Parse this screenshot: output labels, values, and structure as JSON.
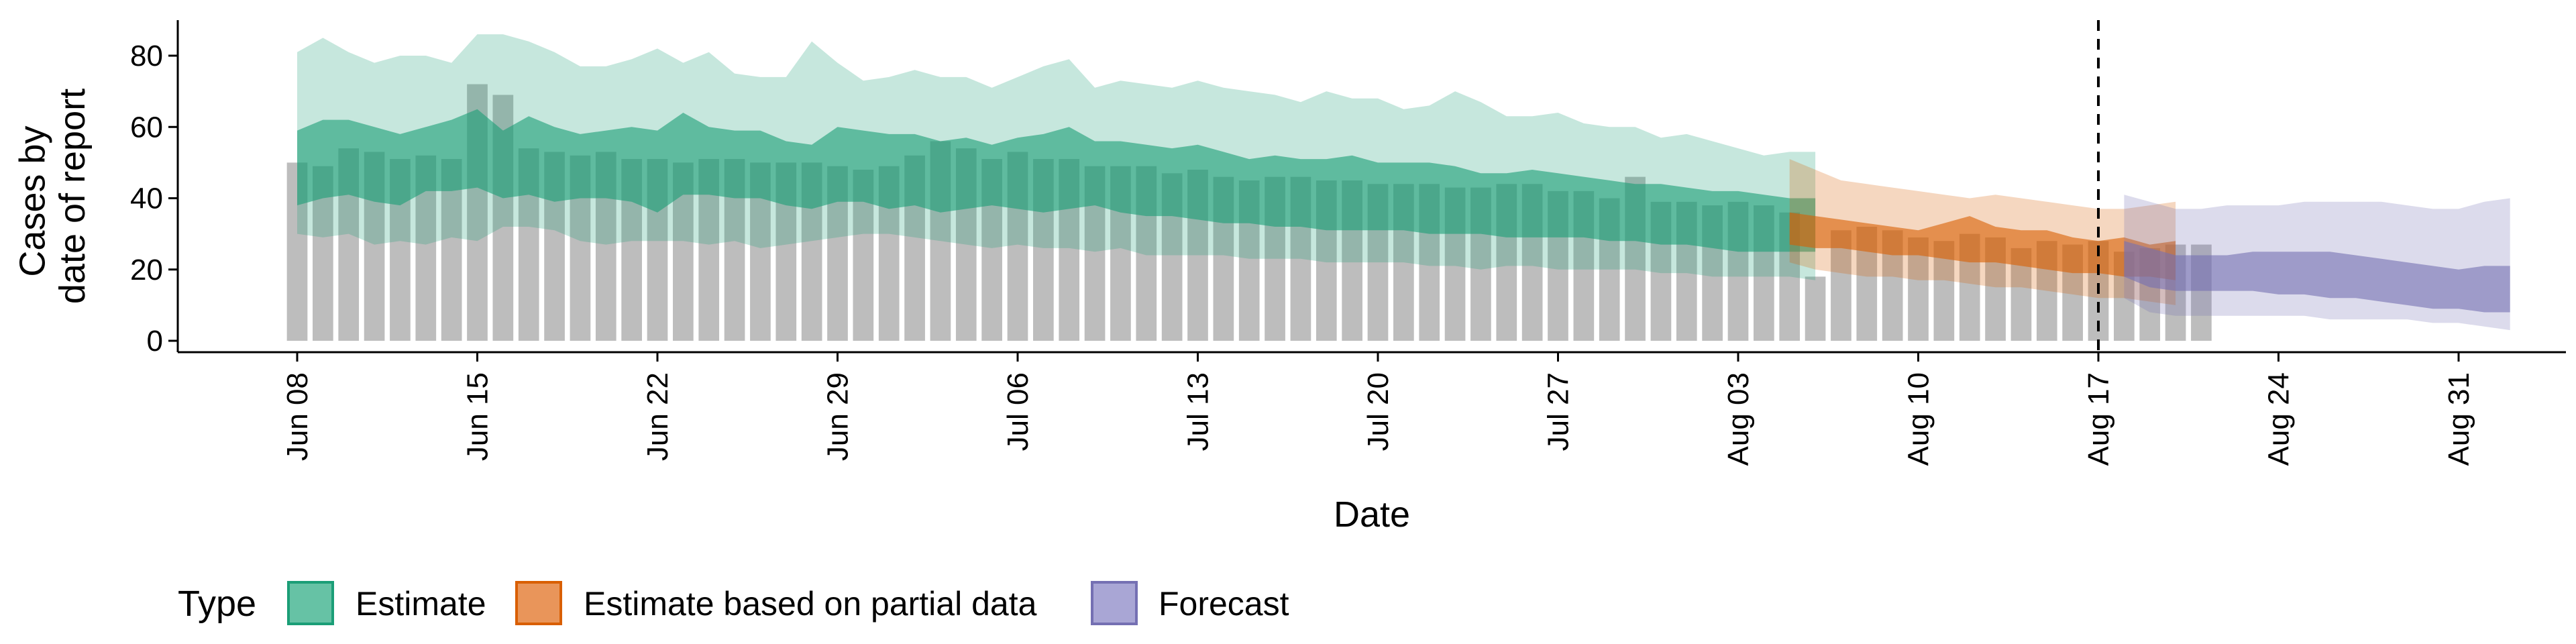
{
  "chart_data": {
    "type": "bar",
    "xlabel": "Date",
    "ylabel_lines": [
      "Cases by",
      "date of report"
    ],
    "ylim": [
      0,
      90
    ],
    "y_ticks": [
      0,
      20,
      40,
      60,
      80
    ],
    "x_start": "2020-06-08",
    "x_end": "2020-08-31",
    "x_ticks": [
      {
        "date": "2020-06-08",
        "label": "Jun 08"
      },
      {
        "date": "2020-06-15",
        "label": "Jun 15"
      },
      {
        "date": "2020-06-22",
        "label": "Jun 22"
      },
      {
        "date": "2020-06-29",
        "label": "Jun 29"
      },
      {
        "date": "2020-07-06",
        "label": "Jul 06"
      },
      {
        "date": "2020-07-13",
        "label": "Jul 13"
      },
      {
        "date": "2020-07-20",
        "label": "Jul 20"
      },
      {
        "date": "2020-07-27",
        "label": "Jul 27"
      },
      {
        "date": "2020-08-03",
        "label": "Aug 03"
      },
      {
        "date": "2020-08-10",
        "label": "Aug 10"
      },
      {
        "date": "2020-08-17",
        "label": "Aug 17"
      },
      {
        "date": "2020-08-24",
        "label": "Aug 24"
      },
      {
        "date": "2020-08-31",
        "label": "Aug 31"
      }
    ],
    "forecast_date": "2020-08-17",
    "bars": {
      "color": "#bdbdbd",
      "start_date": "2020-06-08",
      "values": [
        50,
        49,
        54,
        53,
        51,
        52,
        51,
        72,
        69,
        54,
        53,
        52,
        53,
        51,
        51,
        50,
        51,
        51,
        50,
        50,
        50,
        49,
        48,
        49,
        52,
        56,
        54,
        51,
        53,
        51,
        51,
        49,
        49,
        49,
        47,
        48,
        46,
        45,
        46,
        46,
        45,
        45,
        44,
        44,
        44,
        43,
        43,
        44,
        44,
        42,
        42,
        40,
        46,
        39,
        39,
        38,
        39,
        38,
        36,
        18,
        31,
        32,
        31,
        29,
        28,
        30,
        29,
        26,
        28,
        27,
        28,
        25,
        26,
        27,
        27
      ]
    },
    "series": [
      {
        "name": "Estimate",
        "color": "#1b9e77",
        "start_date": "2020-06-08",
        "outer_low": [
          30,
          29,
          30,
          27,
          28,
          27,
          29,
          28,
          32,
          32,
          31,
          28,
          27,
          28,
          28,
          28,
          27,
          28,
          26,
          27,
          28,
          29,
          30,
          30,
          29,
          28,
          27,
          26,
          27,
          26,
          26,
          25,
          26,
          24,
          24,
          24,
          24,
          23,
          23,
          23,
          22,
          22,
          22,
          22,
          21,
          21,
          20,
          21,
          21,
          20,
          20,
          20,
          20,
          19,
          19,
          18,
          18,
          18,
          18,
          17
        ],
        "outer_high": [
          81,
          85,
          81,
          78,
          80,
          80,
          78,
          86,
          86,
          84,
          81,
          77,
          77,
          79,
          82,
          78,
          81,
          75,
          74,
          74,
          84,
          78,
          73,
          74,
          76,
          74,
          74,
          71,
          74,
          77,
          79,
          71,
          73,
          72,
          71,
          73,
          71,
          70,
          69,
          67,
          70,
          68,
          68,
          65,
          66,
          70,
          67,
          63,
          63,
          64,
          61,
          60,
          60,
          57,
          58,
          56,
          54,
          52,
          53,
          53
        ],
        "inner_low": [
          38,
          40,
          41,
          39,
          38,
          42,
          42,
          43,
          40,
          41,
          39,
          40,
          40,
          39,
          36,
          41,
          41,
          40,
          40,
          38,
          37,
          39,
          39,
          37,
          38,
          36,
          37,
          38,
          37,
          36,
          37,
          38,
          36,
          35,
          35,
          34,
          33,
          33,
          32,
          32,
          31,
          31,
          31,
          31,
          30,
          30,
          30,
          29,
          29,
          29,
          29,
          28,
          28,
          27,
          27,
          26,
          25,
          25,
          25,
          25
        ],
        "inner_high": [
          59,
          62,
          62,
          60,
          58,
          60,
          62,
          65,
          59,
          63,
          60,
          58,
          59,
          60,
          59,
          64,
          60,
          59,
          59,
          56,
          55,
          60,
          59,
          58,
          58,
          56,
          57,
          55,
          57,
          58,
          60,
          56,
          56,
          55,
          54,
          55,
          53,
          51,
          52,
          51,
          51,
          52,
          50,
          50,
          50,
          49,
          47,
          47,
          48,
          47,
          46,
          45,
          44,
          44,
          43,
          42,
          42,
          41,
          40,
          40
        ]
      },
      {
        "name": "Estimate based on partial data",
        "color": "#d95f02",
        "start_date": "2020-08-05",
        "outer_low": [
          22,
          20,
          19,
          18,
          18,
          17,
          17,
          16,
          15,
          15,
          14,
          13,
          12,
          12,
          11,
          10
        ],
        "outer_high": [
          51,
          48,
          45,
          44,
          43,
          42,
          41,
          40,
          41,
          40,
          39,
          38,
          37,
          37,
          38,
          39
        ],
        "inner_low": [
          27,
          26,
          26,
          25,
          24,
          24,
          23,
          22,
          22,
          21,
          20,
          19,
          19,
          18,
          18,
          17
        ],
        "inner_high": [
          36,
          35,
          34,
          33,
          32,
          31,
          33,
          35,
          32,
          31,
          31,
          29,
          28,
          29,
          27,
          28
        ]
      },
      {
        "name": "Forecast",
        "color": "#7570b3",
        "start_date": "2020-08-18",
        "outer_low": [
          12,
          8,
          7,
          7,
          7,
          7,
          7,
          7,
          6,
          6,
          6,
          6,
          5,
          5,
          4,
          3
        ],
        "outer_high": [
          41,
          39,
          37,
          37,
          38,
          38,
          38,
          39,
          39,
          39,
          39,
          38,
          37,
          37,
          39,
          40
        ],
        "inner_low": [
          18,
          15,
          14,
          14,
          14,
          14,
          13,
          13,
          12,
          12,
          11,
          10,
          9,
          9,
          8,
          8
        ],
        "inner_high": [
          28,
          26,
          24,
          24,
          24,
          25,
          25,
          25,
          25,
          24,
          23,
          22,
          21,
          20,
          21,
          21
        ]
      }
    ],
    "legend": {
      "title": "Type",
      "position": "bottom",
      "items": [
        {
          "label": "Estimate",
          "color": "#66c2a5",
          "border": "#1b9e77"
        },
        {
          "label": "Estimate based on partial data",
          "color": "#e9955a",
          "border": "#d95f02"
        },
        {
          "label": "Forecast",
          "color": "#a9a6d5",
          "border": "#7570b3"
        }
      ]
    },
    "grid": false
  }
}
